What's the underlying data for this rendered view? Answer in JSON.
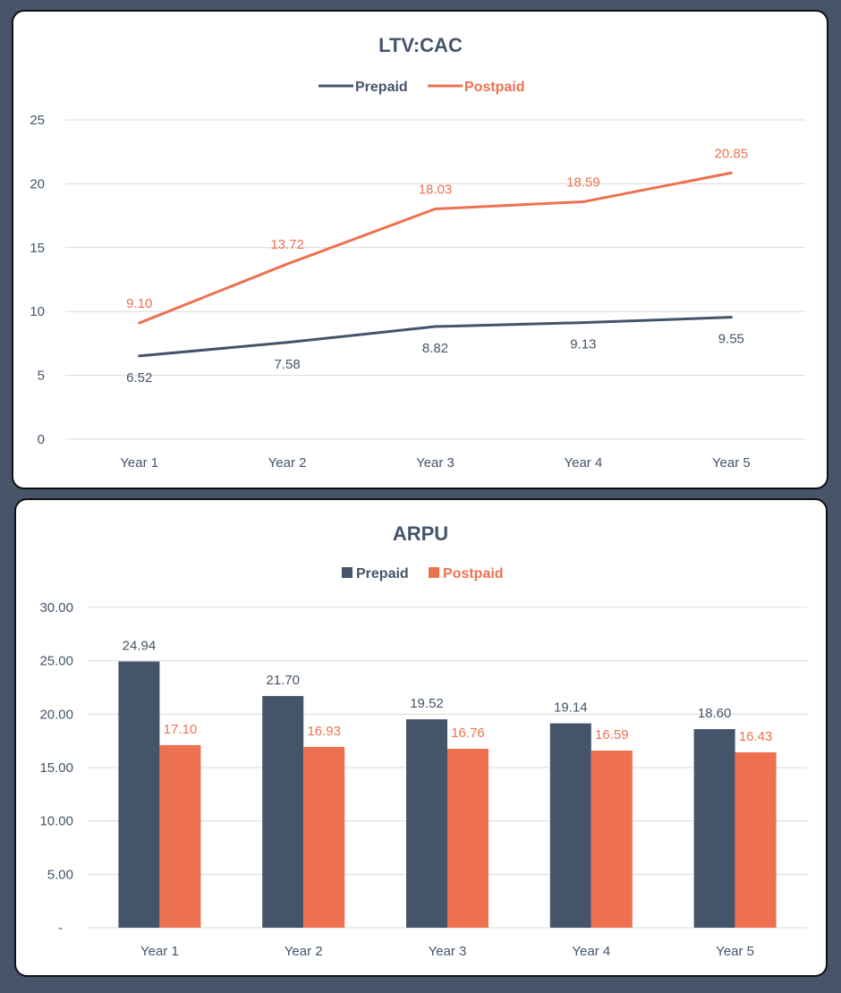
{
  "colors": {
    "prepaid": "#44546a",
    "postpaid": "#ed7150",
    "grid": "#d9d9d9",
    "text": "#44546a"
  },
  "chart_data": [
    {
      "type": "line",
      "title": "LTV:CAC",
      "categories": [
        "Year 1",
        "Year 2",
        "Year 3",
        "Year 4",
        "Year 5"
      ],
      "series": [
        {
          "name": "Prepaid",
          "values": [
            6.52,
            7.58,
            8.82,
            9.13,
            9.55
          ],
          "labels": [
            "6.52",
            "7.58",
            "8.82",
            "9.13",
            "9.55"
          ]
        },
        {
          "name": "Postpaid",
          "values": [
            9.1,
            13.72,
            18.03,
            18.59,
            20.85
          ],
          "labels": [
            "9.10",
            "13.72",
            "18.03",
            "18.59",
            "20.85"
          ]
        }
      ],
      "ylim": [
        0,
        25
      ],
      "yticks": [
        0,
        5,
        10,
        15,
        20,
        25
      ],
      "ytick_labels": [
        "0",
        "5",
        "10",
        "15",
        "20",
        "25"
      ],
      "legend": "top-center",
      "grid": true
    },
    {
      "type": "bar",
      "title": "ARPU",
      "categories": [
        "Year 1",
        "Year 2",
        "Year 3",
        "Year 4",
        "Year 5"
      ],
      "series": [
        {
          "name": "Prepaid",
          "values": [
            24.94,
            21.7,
            19.52,
            19.14,
            18.6
          ],
          "labels": [
            "24.94",
            "21.70",
            "19.52",
            "19.14",
            "18.60"
          ]
        },
        {
          "name": "Postpaid",
          "values": [
            17.1,
            16.93,
            16.76,
            16.59,
            16.43
          ],
          "labels": [
            "17.10",
            "16.93",
            "16.76",
            "16.59",
            "16.43"
          ]
        }
      ],
      "ylim": [
        0,
        30
      ],
      "yticks": [
        0,
        5,
        10,
        15,
        20,
        25,
        30
      ],
      "ytick_labels": [
        "-",
        "5.00",
        "10.00",
        "15.00",
        "20.00",
        "25.00",
        "30.00"
      ],
      "legend": "top-center",
      "grid": true
    }
  ]
}
